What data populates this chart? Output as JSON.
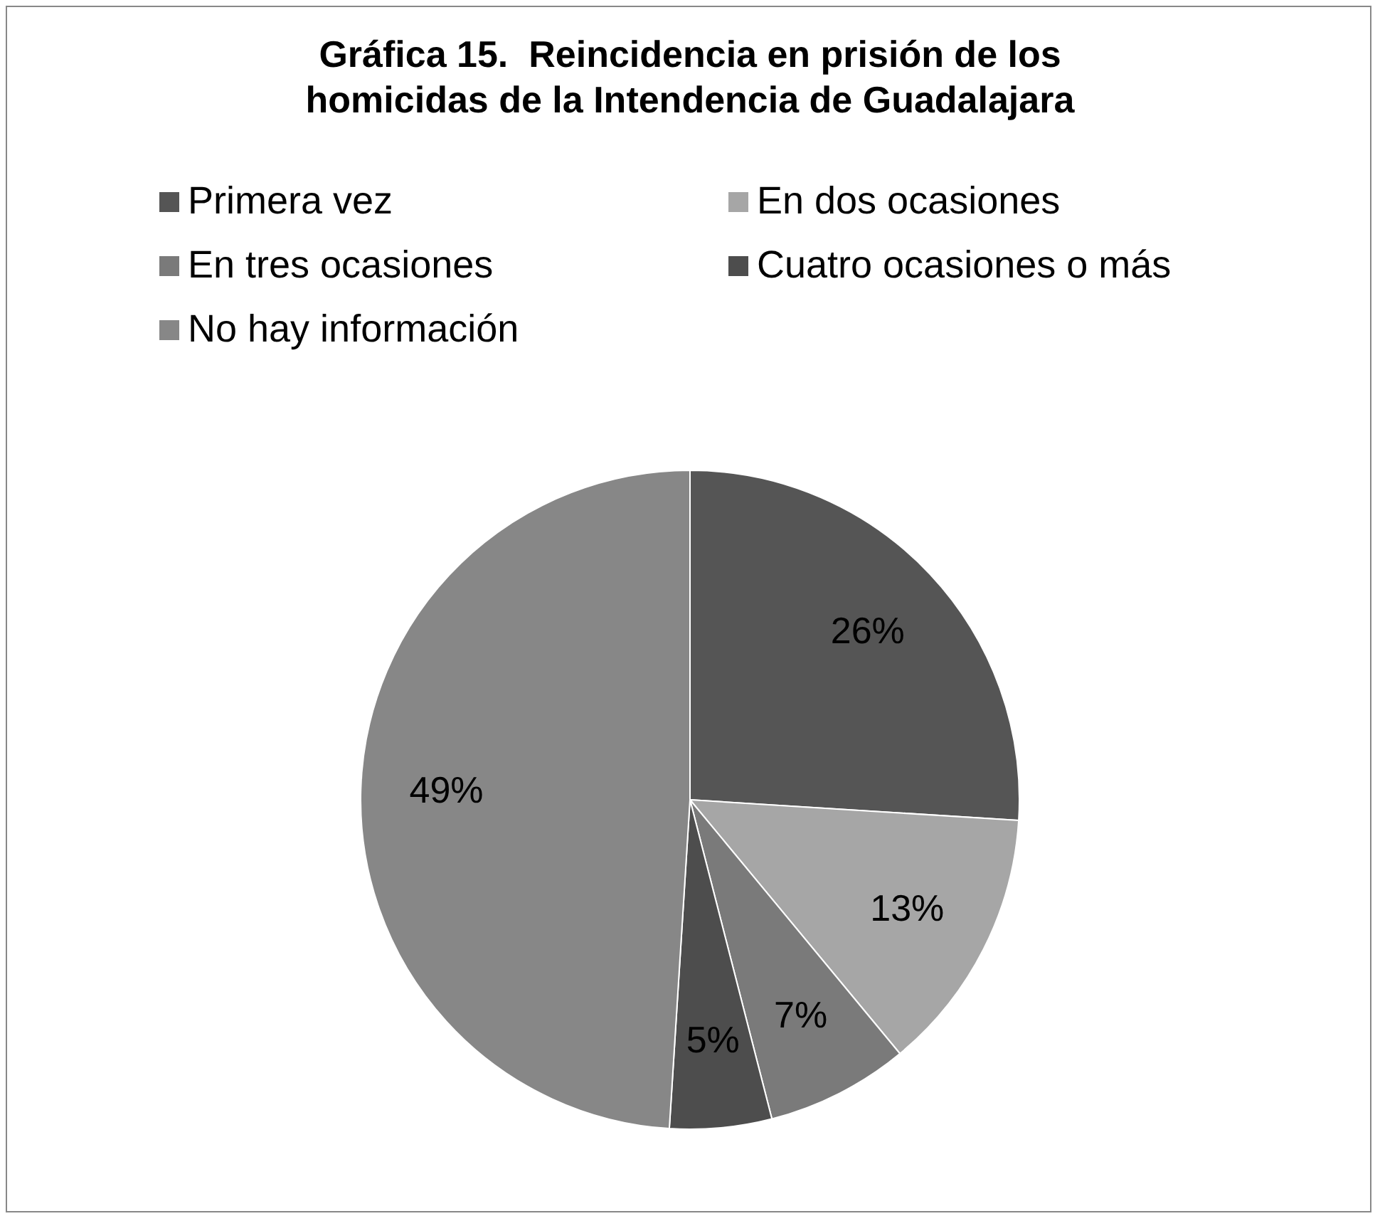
{
  "chart_data": {
    "type": "pie",
    "title": "Gráfica 15.  Reincidencia en prisión de los homicidas de la Intendencia de Guadalajara",
    "categories": [
      "Primera vez",
      "En dos ocasiones",
      "En tres ocasiones",
      "Cuatro ocasiones o más",
      "No hay información"
    ],
    "values": [
      26,
      13,
      7,
      5,
      49
    ],
    "colors": [
      "#555555",
      "#a6a6a6",
      "#7a7a7a",
      "#4d4d4d",
      "#878787"
    ],
    "value_labels": [
      "26%",
      "13%",
      "7%",
      "5%",
      "49%"
    ],
    "legend": "top"
  }
}
